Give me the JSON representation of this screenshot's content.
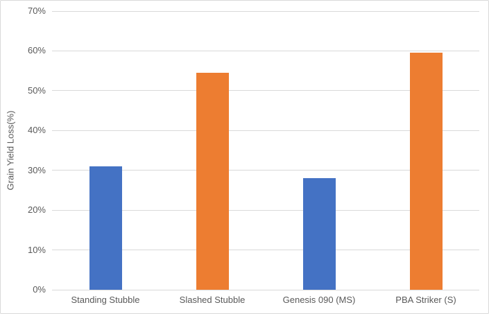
{
  "chart_data": {
    "type": "bar",
    "title": "",
    "xlabel": "",
    "ylabel": "Grain Yield Loss(%)",
    "categories": [
      "Standing Stubble",
      "Slashed Stubble",
      "Genesis 090 (MS)",
      "PBA Striker (S)"
    ],
    "values": [
      31,
      54.5,
      28,
      59.5
    ],
    "value_unit": "%",
    "ylim": [
      0,
      70
    ],
    "ytick_step": 10,
    "ytick_labels": [
      "0%",
      "10%",
      "20%",
      "30%",
      "40%",
      "50%",
      "60%",
      "70%"
    ],
    "grid": "horizontal",
    "legend": "none",
    "colors": {
      "bar_color_per_category": [
        "#4472C4",
        "#ED7D31",
        "#4472C4",
        "#ED7D31"
      ],
      "blue_series": "#4472C4",
      "orange_series": "#ED7D31",
      "gridline": "#D9D9D9",
      "axis_line": "#D9D9D9",
      "text": "#595959",
      "background": "#FFFFFF",
      "border": "#D9D9D9"
    }
  }
}
